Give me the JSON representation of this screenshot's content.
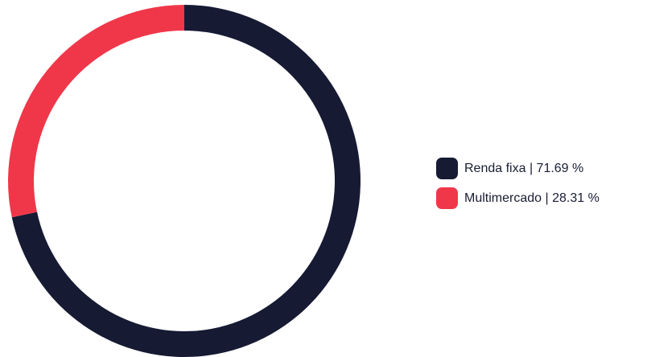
{
  "chart_data": {
    "type": "pie",
    "style": "donut",
    "slices": [
      {
        "label": "Renda fixa",
        "value": 71.69,
        "display": "Renda fixa | 71.69 %",
        "color": "#161a33"
      },
      {
        "label": "Multimercado",
        "value": 28.31,
        "display": "Multimercado | 28.31 %",
        "color": "#f0374a"
      }
    ],
    "start_angle": "top",
    "direction": "clockwise",
    "legend_position": "right"
  }
}
